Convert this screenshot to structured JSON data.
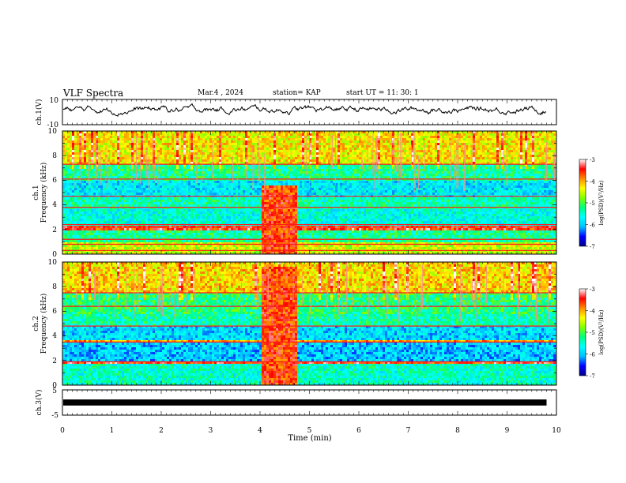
{
  "header": {
    "title": "VLF Spectra",
    "date": "Mar.4 , 2024",
    "station": "station= KAP",
    "start_ut": "start UT =  11: 30: 1"
  },
  "colorbar": {
    "label": "log(PSD)(V²/Hz)",
    "ticks": [
      "-3",
      "-4",
      "-5",
      "-6",
      "-7"
    ],
    "range": [
      -7,
      -3
    ],
    "colors": [
      "#00008b",
      "#0000ff",
      "#00bfff",
      "#00ffff",
      "#00ff7f",
      "#7fff00",
      "#ffff00",
      "#ff8c00",
      "#ff0000",
      "#ffffff"
    ]
  },
  "chart_data": [
    {
      "type": "line",
      "panel": "ch1-waveform",
      "ylabel": "ch.1(V)",
      "ylim": [
        -10,
        10
      ],
      "ytick_labels": [
        "10",
        "-10"
      ],
      "x_range": [
        0,
        9.8
      ],
      "approx_envelope": {
        "max": 7,
        "min": -4,
        "typical_center": 2
      }
    },
    {
      "type": "heatmap",
      "panel": "ch1-spectrogram",
      "ylabel_lines": [
        "ch.1",
        "Frequency  (kHz)"
      ],
      "ylim": [
        0,
        10
      ],
      "ytick_labels": [
        "0",
        "2",
        "4",
        "6",
        "8",
        "10"
      ],
      "x_range": [
        0,
        9.8
      ],
      "value": "log(PSD)(V²/Hz)",
      "background_bands_kHz": [
        {
          "from": 0,
          "to": 1,
          "level": -4.5
        },
        {
          "from": 1,
          "to": 2,
          "level": -5.3
        },
        {
          "from": 2,
          "to": 2.4,
          "level": -3.5
        },
        {
          "from": 2.4,
          "to": 3.7,
          "level": -5.6
        },
        {
          "from": 3.7,
          "to": 4.7,
          "level": -5.4
        },
        {
          "from": 4.7,
          "to": 6.0,
          "level": -5.8
        },
        {
          "from": 6.0,
          "to": 7.3,
          "level": -5.3
        },
        {
          "from": 7.3,
          "to": 10,
          "level": -4.3
        }
      ],
      "horizontal_lines_kHz": [
        0.3,
        0.8,
        1.2,
        2.2,
        2.4,
        3.8,
        4.7,
        6.1,
        7.3
      ],
      "burst_minutes": [
        4.05,
        4.75
      ],
      "burst_top_kHz": 5.6
    },
    {
      "type": "heatmap",
      "panel": "ch2-spectrogram",
      "ylabel_lines": [
        "ch.2",
        "Frequency  (kHz)"
      ],
      "ylim": [
        0,
        10
      ],
      "ytick_labels": [
        "0",
        "2",
        "4",
        "6",
        "8",
        "10"
      ],
      "x_range": [
        0,
        9.8
      ],
      "value": "log(PSD)(V²/Hz)",
      "background_bands_kHz": [
        {
          "from": 0,
          "to": 1.7,
          "level": -5.5
        },
        {
          "from": 1.7,
          "to": 2.0,
          "level": -3.5
        },
        {
          "from": 2.0,
          "to": 3.4,
          "level": -6.0
        },
        {
          "from": 3.4,
          "to": 3.6,
          "level": -4.0
        },
        {
          "from": 3.6,
          "to": 4.8,
          "level": -5.9
        },
        {
          "from": 4.8,
          "to": 5.8,
          "level": -5.4
        },
        {
          "from": 5.8,
          "to": 7.5,
          "level": -5.2
        },
        {
          "from": 7.5,
          "to": 10,
          "level": -4.2
        }
      ],
      "horizontal_lines_kHz": [
        1.9,
        3.5,
        4.8,
        6.4,
        7.5
      ],
      "burst_minutes": [
        4.05,
        4.75
      ],
      "burst_top_kHz": 9.6
    },
    {
      "type": "line",
      "panel": "ch3-waveform",
      "ylabel": "ch.3(V)",
      "ylim": [
        -5,
        5
      ],
      "ytick_labels": [
        "5",
        "-5"
      ],
      "x_range": [
        0,
        9.8
      ],
      "approx_level": 0,
      "band_halfwidth": 0.4
    }
  ],
  "x_axis": {
    "label": "Time  (min)",
    "ticks": [
      "0",
      "1",
      "2",
      "3",
      "4",
      "5",
      "6",
      "7",
      "8",
      "9",
      "10"
    ],
    "range": [
      0,
      10
    ]
  }
}
